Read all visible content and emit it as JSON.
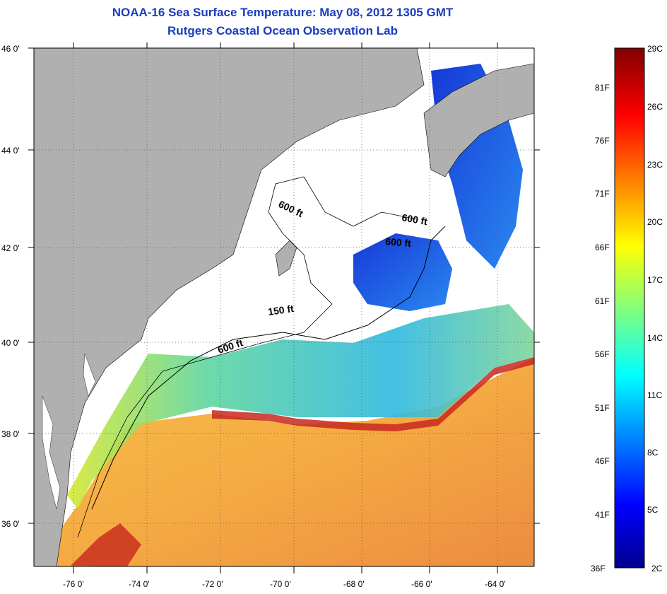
{
  "header": {
    "title": "NOAA-16 Sea Surface Temperature:  May 08, 2012 1305 GMT",
    "subtitle": "Rutgers Coastal Ocean Observation Lab"
  },
  "map": {
    "lon_ticks": [
      "-76 0'",
      "-74 0'",
      "-72 0'",
      "-70 0'",
      "-68 0'",
      "-66 0'",
      "-64 0'"
    ],
    "lat_ticks": [
      "46 0'",
      "44 0'",
      "42 0'",
      "40 0'",
      "38 0'",
      "36 0'"
    ],
    "lon_range": [
      -77.0,
      -62.5
    ],
    "lat_range": [
      35.0,
      46.0
    ],
    "contour_labels": [
      "600 ft",
      "600 ft",
      "600 ft",
      "150 ft",
      "600 ft"
    ],
    "land_color": "#b0b0b0",
    "grid": "dotted"
  },
  "colorbar": {
    "fahrenheit": [
      "81F",
      "76F",
      "71F",
      "66F",
      "61F",
      "56F",
      "51F",
      "46F",
      "41F",
      "36F"
    ],
    "celsius": [
      "29C",
      "26C",
      "23C",
      "20C",
      "17C",
      "14C",
      "11C",
      "8C",
      "5C",
      "2C"
    ],
    "range_c": [
      2,
      29
    ]
  }
}
